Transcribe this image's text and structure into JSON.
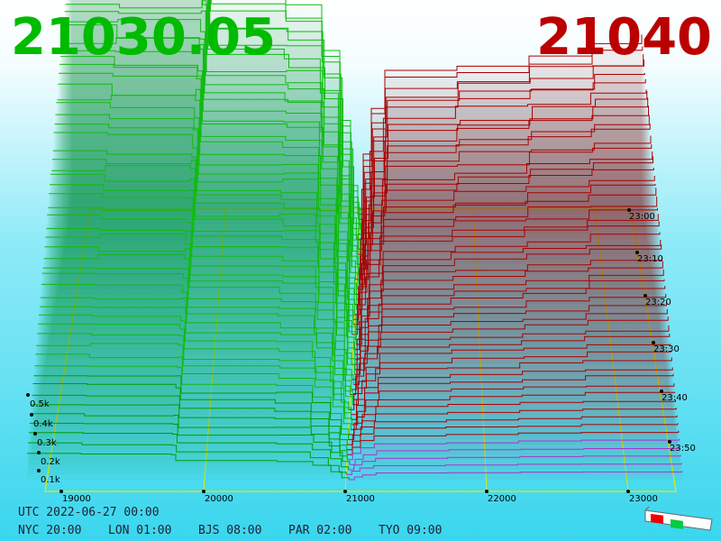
{
  "bid_price": "21030.05",
  "ask_price": "21040",
  "price_axis": {
    "ticks": [
      19000,
      20000,
      21000,
      22000,
      23000
    ]
  },
  "volume_axis": {
    "ticks": [
      "0.1k",
      "0.2k",
      "0.3k",
      "0.4k",
      "0.5k"
    ]
  },
  "time_axis": {
    "ticks": [
      "23:00",
      "23:10",
      "23:20",
      "23:30",
      "23:40",
      "23:50"
    ]
  },
  "clock": {
    "utc": "UTC 2022-06-27 00:00",
    "cities": [
      "NYC 20:00",
      "LON 01:00",
      "BJS 08:00",
      "PAR 02:00",
      "TYO 09:00"
    ]
  }
}
